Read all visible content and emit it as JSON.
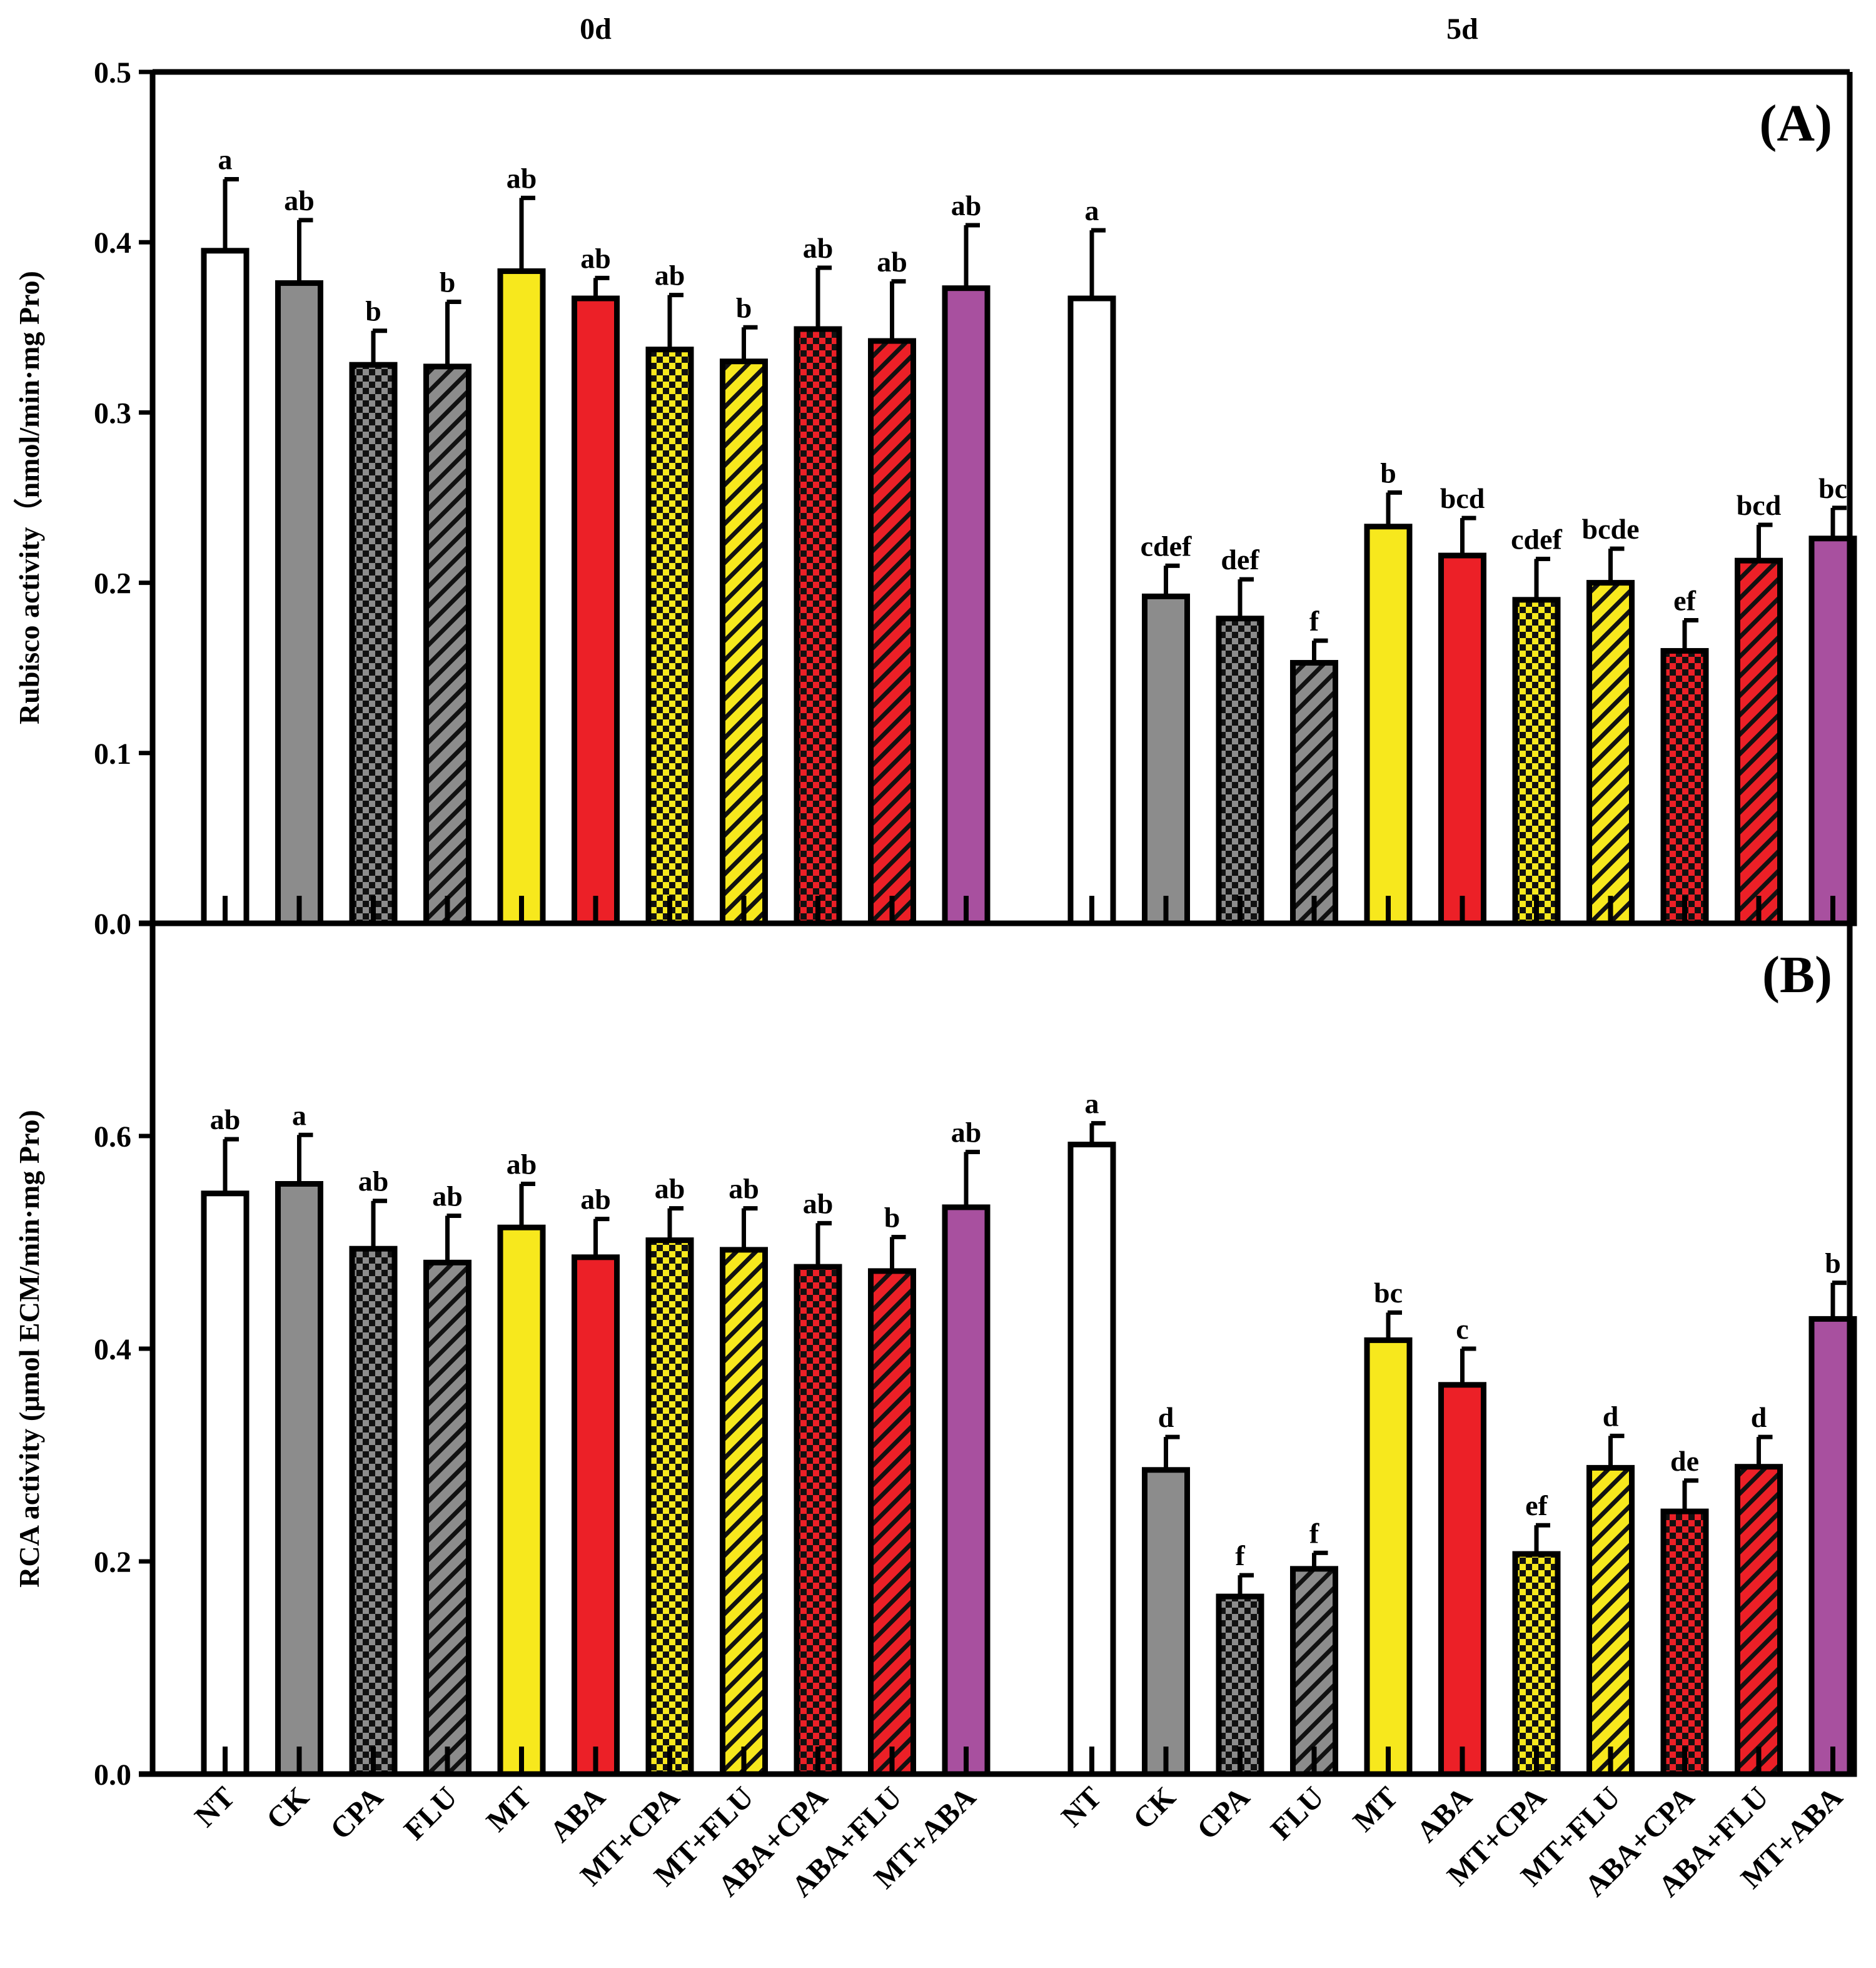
{
  "chart_data": [
    {
      "panel": "(A)",
      "type": "bar",
      "ylabel": "Rubisco activity（nmol/min·mg Pro)",
      "ylim": [
        0,
        0.5
      ],
      "yticks": [
        0.0,
        0.1,
        0.2,
        0.3,
        0.4,
        0.5
      ],
      "ytick_labels": [
        "0.0",
        "0.1",
        "0.2",
        "0.3",
        "0.4",
        "0.5"
      ],
      "groups": [
        {
          "label": "0d",
          "values": [
            0.395,
            0.376,
            0.328,
            0.327,
            0.383,
            0.367,
            0.337,
            0.33,
            0.349,
            0.342,
            0.373
          ],
          "errors": [
            0.042,
            0.037,
            0.02,
            0.038,
            0.043,
            0.012,
            0.032,
            0.02,
            0.036,
            0.035,
            0.037
          ],
          "letters": [
            "a",
            "ab",
            "b",
            "b",
            "ab",
            "ab",
            "ab",
            "b",
            "ab",
            "ab",
            "ab"
          ]
        },
        {
          "label": "5d",
          "values": [
            0.367,
            0.192,
            0.179,
            0.153,
            0.233,
            0.216,
            0.19,
            0.2,
            0.16,
            0.213,
            0.226
          ],
          "errors": [
            0.04,
            0.018,
            0.023,
            0.013,
            0.02,
            0.022,
            0.024,
            0.02,
            0.018,
            0.021,
            0.018
          ],
          "letters": [
            "a",
            "cdef",
            "def",
            "f",
            "b",
            "bcd",
            "cdef",
            "bcde",
            "ef",
            "bcd",
            "bc"
          ]
        }
      ]
    },
    {
      "panel": "(B)",
      "type": "bar",
      "ylabel": "RCA activity (μmol ECM/min·mg Pro)",
      "ylim": [
        0,
        0.8
      ],
      "yticks": [
        0.0,
        0.2,
        0.4,
        0.6
      ],
      "ytick_labels": [
        "0.0",
        "0.2",
        "0.4",
        "0.6"
      ],
      "groups": [
        {
          "label": "0d",
          "values": [
            0.546,
            0.555,
            0.494,
            0.481,
            0.514,
            0.486,
            0.502,
            0.493,
            0.477,
            0.473,
            0.533
          ],
          "errors": [
            0.051,
            0.046,
            0.045,
            0.044,
            0.041,
            0.036,
            0.03,
            0.039,
            0.041,
            0.032,
            0.052
          ],
          "letters": [
            "ab",
            "a",
            "ab",
            "ab",
            "ab",
            "ab",
            "ab",
            "ab",
            "ab",
            "b",
            "ab"
          ]
        },
        {
          "label": "5d",
          "values": [
            0.592,
            0.286,
            0.167,
            0.193,
            0.408,
            0.366,
            0.207,
            0.288,
            0.247,
            0.289,
            0.428
          ],
          "errors": [
            0.02,
            0.031,
            0.02,
            0.015,
            0.026,
            0.034,
            0.027,
            0.03,
            0.029,
            0.028,
            0.034
          ],
          "letters": [
            "a",
            "d",
            "f",
            "f",
            "bc",
            "c",
            "ef",
            "d",
            "de",
            "d",
            "b"
          ]
        }
      ]
    }
  ],
  "categories": [
    "NT",
    "CK",
    "CPA",
    "FLU",
    "MT",
    "ABA",
    "MT+CPA",
    "MT+FLU",
    "ABA+CPA",
    "ABA+FLU",
    "MT+ABA"
  ],
  "group_labels": [
    "0d",
    "5d"
  ],
  "panel_labels": [
    "(A)",
    "(B)"
  ],
  "styles": [
    {
      "fill": "#ffffff",
      "pattern": "none"
    },
    {
      "fill": "#8c8c8c",
      "pattern": "none"
    },
    {
      "fill": "#8c8c8c",
      "pattern": "check"
    },
    {
      "fill": "#8c8c8c",
      "pattern": "diag"
    },
    {
      "fill": "#f7e81d",
      "pattern": "none"
    },
    {
      "fill": "#ec2027",
      "pattern": "none"
    },
    {
      "fill": "#f7e81d",
      "pattern": "check"
    },
    {
      "fill": "#f7e81d",
      "pattern": "diag"
    },
    {
      "fill": "#ec2027",
      "pattern": "check"
    },
    {
      "fill": "#ec2027",
      "pattern": "diag"
    },
    {
      "fill": "#a8509f",
      "pattern": "none"
    }
  ]
}
